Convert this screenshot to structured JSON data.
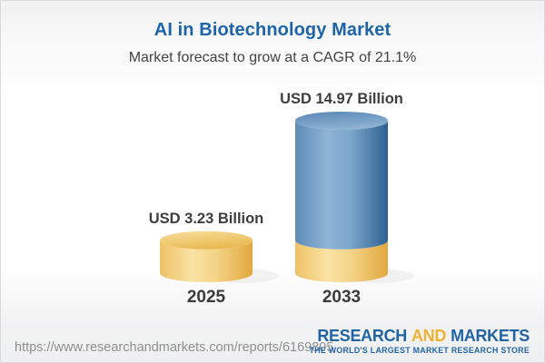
{
  "chart_data": {
    "type": "bar",
    "subtype": "3d-cylinder",
    "title": "AI in Biotechnology Market",
    "subtitle": "Market forecast to grow at a CAGR of 21.1%",
    "unit": "USD Billion",
    "categories": [
      "2025",
      "2033"
    ],
    "values": [
      3.23,
      14.97
    ],
    "value_labels": [
      "USD 3.23 Billion",
      "USD 14.97 Billion"
    ],
    "cagr_percent": 21.1,
    "legend": "none",
    "axes": "none",
    "notes": "Forecast column for 2033 shows the 2025 value as a gold base segment beneath the blue growth segment",
    "colors": {
      "gold_bar": "#f0c768",
      "blue_bar": "#5e8fba",
      "title_text": "#1d64a8",
      "label_text": "#3d3d3d"
    }
  },
  "footer": {
    "url": "https://www.researchandmarkets.com/reports/6169805",
    "logo": {
      "word1": "RESEARCH",
      "word2": "AND",
      "word3": "MARKETS",
      "tagline": "THE WORLD'S LARGEST MARKET RESEARCH STORE"
    }
  }
}
